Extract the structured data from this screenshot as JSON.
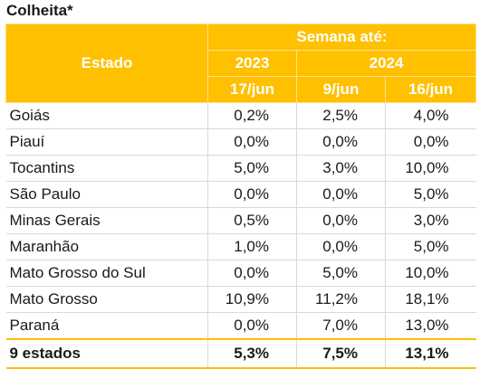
{
  "title": "Colheita*",
  "header": {
    "state_label": "Estado",
    "week_label": "Semana até:",
    "years": [
      "2023",
      "2024"
    ],
    "dates": [
      "17/jun",
      "9/jun",
      "16/jun"
    ]
  },
  "rows": [
    {
      "state": "Goiás",
      "values": [
        "0,2%",
        "2,5%",
        "4,0%"
      ]
    },
    {
      "state": "Piauí",
      "values": [
        "0,0%",
        "0,0%",
        "0,0%"
      ]
    },
    {
      "state": "Tocantins",
      "values": [
        "5,0%",
        "3,0%",
        "10,0%"
      ]
    },
    {
      "state": "São Paulo",
      "values": [
        "0,0%",
        "0,0%",
        "5,0%"
      ]
    },
    {
      "state": "Minas Gerais",
      "values": [
        "0,5%",
        "0,0%",
        "3,0%"
      ]
    },
    {
      "state": "Maranhão",
      "values": [
        "1,0%",
        "0,0%",
        "5,0%"
      ]
    },
    {
      "state": "Mato Grosso do Sul",
      "values": [
        "0,0%",
        "5,0%",
        "10,0%"
      ]
    },
    {
      "state": "Mato Grosso",
      "values": [
        "10,9%",
        "11,2%",
        "18,1%"
      ]
    },
    {
      "state": "Paraná",
      "values": [
        "0,0%",
        "7,0%",
        "13,0%"
      ]
    }
  ],
  "total": {
    "state": "9 estados",
    "values": [
      "5,3%",
      "7,5%",
      "13,1%"
    ]
  },
  "colors": {
    "header_bg": "#ffc000",
    "header_text": "#ffffff"
  }
}
